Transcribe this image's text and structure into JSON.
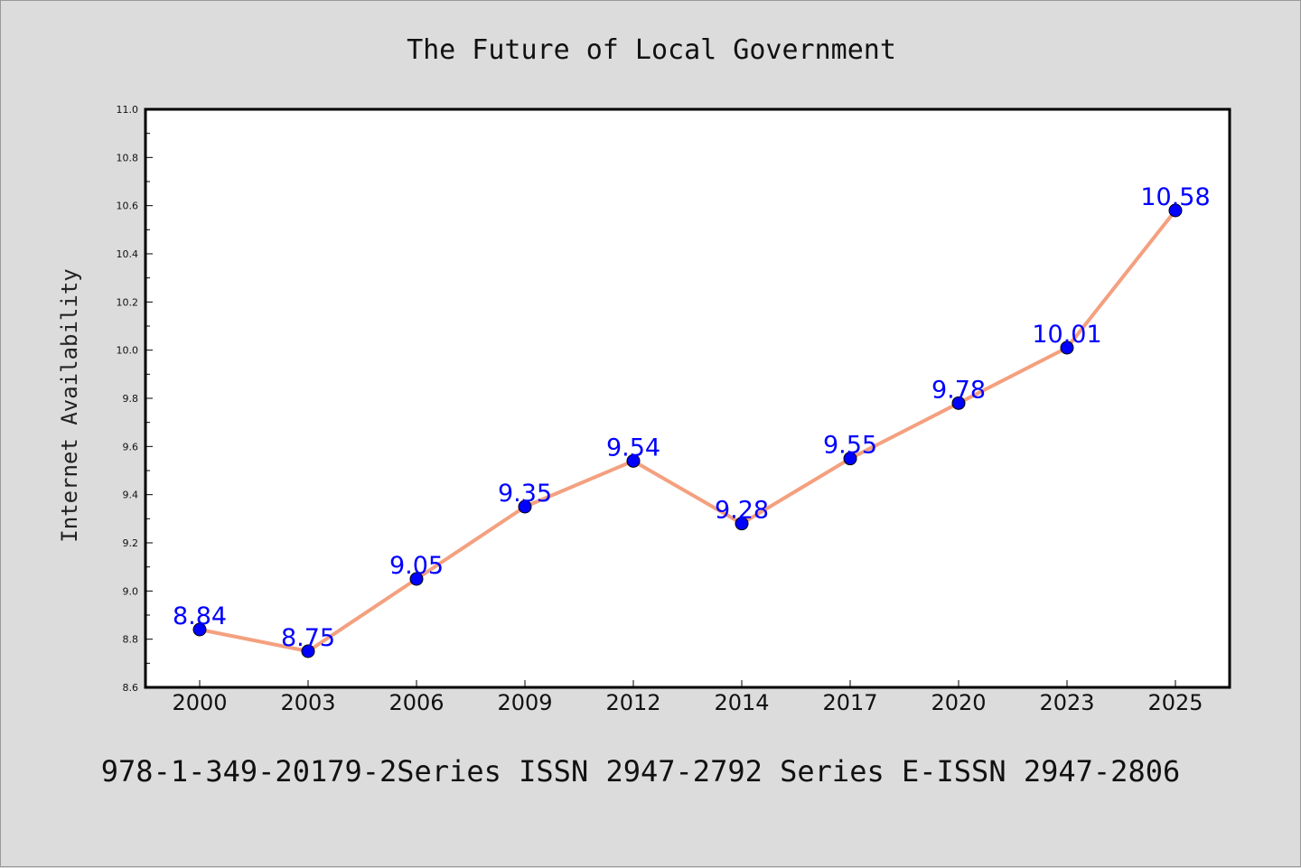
{
  "caption": "978-1-349-20179-2Series ISSN 2947-2792 Series E-ISSN 2947-2806",
  "colors": {
    "background": "#dcdcdc",
    "plot_background": "#ffffff",
    "line": "#f4a07f",
    "marker": "#0000ff",
    "data_label": "#0000ff"
  },
  "chart_data": {
    "type": "line",
    "title": "The Future of Local Government",
    "xlabel": "",
    "ylabel": "Internet Availability",
    "categories": [
      "2000",
      "2003",
      "2006",
      "2009",
      "2012",
      "2014",
      "2017",
      "2020",
      "2023",
      "2025"
    ],
    "series": [
      {
        "values": [
          8.84,
          8.75,
          9.05,
          9.35,
          9.54,
          9.28,
          9.55,
          9.78,
          10.01,
          10.58
        ],
        "labels": [
          "8.84",
          "8.75",
          "9.05",
          "9.35",
          "9.54",
          "9.28",
          "9.55",
          "9.78",
          "10.01",
          "10.58"
        ]
      }
    ],
    "ylim": [
      8.6,
      11.0
    ],
    "yticks": [
      "8.6",
      "8.8",
      "9.0",
      "9.2",
      "9.4",
      "9.6",
      "9.8",
      "10.0",
      "10.2",
      "10.4",
      "10.6",
      "10.8",
      "11.0"
    ],
    "grid": false,
    "legend": false,
    "markers": true,
    "data_labels": true
  }
}
